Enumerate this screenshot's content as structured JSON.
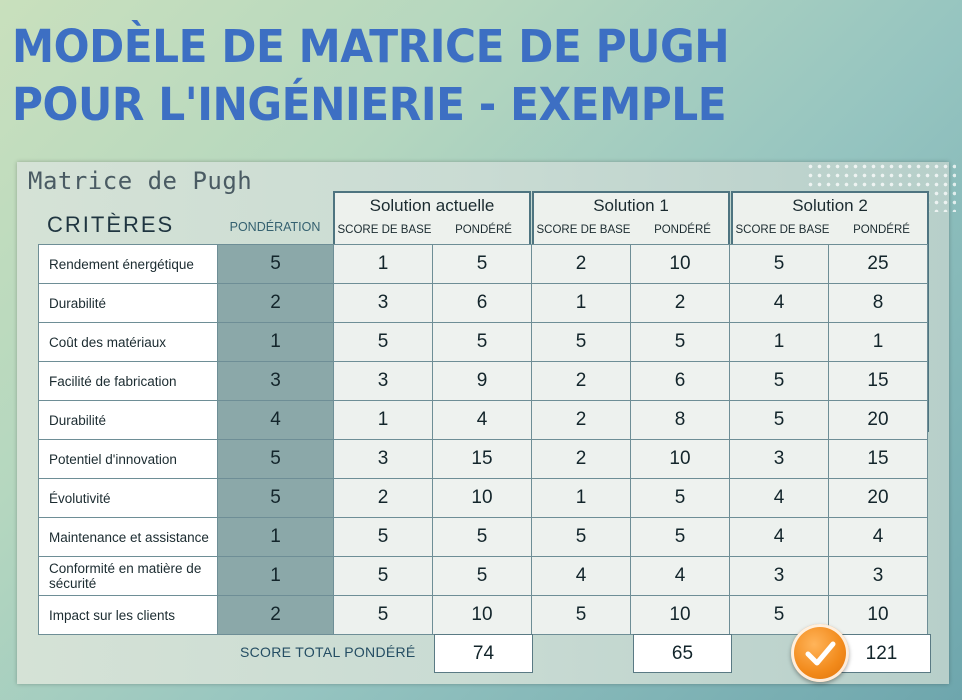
{
  "title": {
    "line1": "MODÈLE DE MATRICE DE PUGH",
    "line2": "POUR L'INGÉNIERIE - EXEMPLE"
  },
  "panel_title": "Matrice de Pugh",
  "headers": {
    "criteria": "CRITÈRES",
    "weight": "PONDÉRATION",
    "base_score": "SCORE DE BASE",
    "weighted": "PONDÉRÉ"
  },
  "solutions": [
    {
      "name": "Solution actuelle",
      "total": "74"
    },
    {
      "name": "Solution 1",
      "total": "65"
    },
    {
      "name": "Solution 2",
      "total": "121"
    }
  ],
  "rows": [
    {
      "criterion": "Rendement énergétique",
      "weight": "5",
      "scores": [
        "1",
        "5",
        "2",
        "10",
        "5",
        "25"
      ]
    },
    {
      "criterion": "Durabilité",
      "weight": "2",
      "scores": [
        "3",
        "6",
        "1",
        "2",
        "4",
        "8"
      ]
    },
    {
      "criterion": "Coût des matériaux",
      "weight": "1",
      "scores": [
        "5",
        "5",
        "5",
        "5",
        "1",
        "1"
      ]
    },
    {
      "criterion": "Facilité de fabrication",
      "weight": "3",
      "scores": [
        "3",
        "9",
        "2",
        "6",
        "5",
        "15"
      ]
    },
    {
      "criterion": "Durabilité",
      "weight": "4",
      "scores": [
        "1",
        "4",
        "2",
        "8",
        "5",
        "20"
      ]
    },
    {
      "criterion": "Potentiel d'innovation",
      "weight": "5",
      "scores": [
        "3",
        "15",
        "2",
        "10",
        "3",
        "15"
      ]
    },
    {
      "criterion": "Évolutivité",
      "weight": "5",
      "scores": [
        "2",
        "10",
        "1",
        "5",
        "4",
        "20"
      ]
    },
    {
      "criterion": "Maintenance et assistance",
      "weight": "1",
      "scores": [
        "5",
        "5",
        "5",
        "5",
        "4",
        "4"
      ]
    },
    {
      "criterion": "Conformité en matière de sécurité",
      "weight": "1",
      "scores": [
        "5",
        "5",
        "4",
        "4",
        "3",
        "3"
      ]
    },
    {
      "criterion": "Impact sur les clients",
      "weight": "2",
      "scores": [
        "5",
        "10",
        "5",
        "10",
        "5",
        "10"
      ]
    }
  ],
  "total_label": "SCORE TOTAL PONDÉRÉ",
  "winner_icon": "orange-checkmark-icon",
  "colors": {
    "title": "#3d6fc3",
    "weight_column": "#8ba8a9",
    "check": "#f28a1b"
  }
}
